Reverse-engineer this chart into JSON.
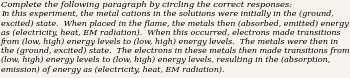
{
  "title_line": "Complete the following paragraph by circling the correct responses:",
  "body_text": "In this experiment, the metal cations in the solutions were initially in the (ground, excited) state.  When placed in the flame, the metals then (absorbed, emitted) energy as (electricity, heat, EM radiation).  When this occurred, electrons made transitions from (low, high) energy levels to (low, high) energy levels.  The metals were then in the (ground, excited) state.  The electrons in these metals then made transitions from (low, high) energy levels to (low, high) energy levels, resulting in the (absorption, emission) of energy as (electricity, heat, EM radiation).",
  "title_fontsize": 6.0,
  "body_fontsize": 5.8,
  "text_color": "#000000",
  "background_color": "#f5f3ee",
  "fig_width": 3.5,
  "fig_height": 0.78,
  "dpi": 100
}
